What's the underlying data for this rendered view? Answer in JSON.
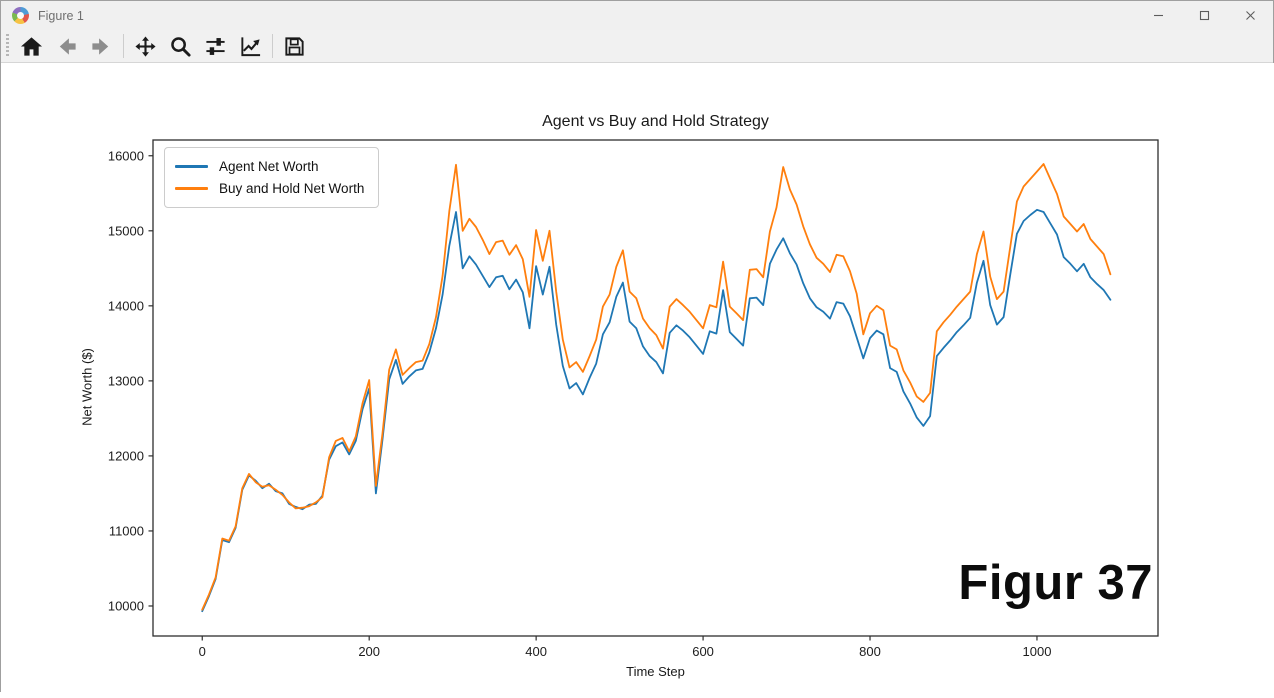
{
  "window": {
    "title": "Figure 1",
    "controls": {
      "minimize": "minimize",
      "maximize": "maximize",
      "close": "close"
    }
  },
  "toolbar": {
    "items": [
      {
        "name": "home",
        "enabled": true
      },
      {
        "name": "back",
        "enabled": false
      },
      {
        "name": "forward",
        "enabled": false
      },
      {
        "name": "pan",
        "enabled": true
      },
      {
        "name": "zoom-to-rect",
        "enabled": true
      },
      {
        "name": "configure-subplots",
        "enabled": true
      },
      {
        "name": "edit-axes",
        "enabled": true
      },
      {
        "name": "save",
        "enabled": true
      }
    ]
  },
  "annotation": {
    "label": "Figur 37"
  },
  "colors": {
    "agent_line": "#1f77b4",
    "buy_hold_line": "#ff7f0e",
    "spine": "#2e2e2e",
    "tick_text": "#1d1d1d"
  },
  "chart_data": {
    "type": "line",
    "title": "Agent vs Buy and Hold Strategy",
    "xlabel": "Time Step",
    "ylabel": "Net Worth ($)",
    "xlim": [
      -59,
      1145
    ],
    "ylim": [
      9600,
      16210
    ],
    "xticks": [
      0,
      200,
      400,
      600,
      800,
      1000
    ],
    "yticks": [
      10000,
      11000,
      12000,
      13000,
      14000,
      15000,
      16000
    ],
    "grid": false,
    "legend_position": "upper left",
    "x_start": 0,
    "x_step": 8,
    "series": [
      {
        "name": "Agent Net Worth",
        "color": "#1f77b4",
        "values": [
          9930,
          10130,
          10360,
          10880,
          10850,
          11040,
          11550,
          11740,
          11670,
          11570,
          11630,
          11530,
          11500,
          11360,
          11320,
          11290,
          11350,
          11360,
          11470,
          11950,
          12130,
          12180,
          12020,
          12200,
          12620,
          12900,
          11500,
          12220,
          13020,
          13280,
          12960,
          13060,
          13140,
          13160,
          13380,
          13700,
          14150,
          14800,
          15250,
          14500,
          14660,
          14550,
          14400,
          14250,
          14380,
          14400,
          14220,
          14350,
          14180,
          13700,
          14530,
          14150,
          14520,
          13750,
          13200,
          12900,
          12970,
          12820,
          13040,
          13230,
          13620,
          13780,
          14120,
          14310,
          13790,
          13700,
          13460,
          13330,
          13250,
          13100,
          13640,
          13740,
          13670,
          13580,
          13470,
          13360,
          13660,
          13630,
          14210,
          13650,
          13560,
          13470,
          14100,
          14110,
          14010,
          14560,
          14750,
          14900,
          14700,
          14550,
          14300,
          14100,
          13980,
          13920,
          13830,
          14050,
          14030,
          13860,
          13580,
          13300,
          13570,
          13670,
          13620,
          13170,
          13120,
          12860,
          12700,
          12510,
          12400,
          12530,
          13330,
          13440,
          13540,
          13650,
          13740,
          13840,
          14310,
          14600,
          14010,
          13750,
          13850,
          14420,
          14960,
          15130,
          15210,
          15280,
          15250,
          15100,
          14950,
          14650,
          14560,
          14460,
          14560,
          14380,
          14290,
          14210,
          14080
        ]
      },
      {
        "name": "Buy and Hold Net Worth",
        "color": "#ff7f0e",
        "values": [
          9950,
          10150,
          10380,
          10900,
          10870,
          11060,
          11570,
          11760,
          11650,
          11590,
          11610,
          11550,
          11480,
          11380,
          11300,
          11310,
          11330,
          11380,
          11450,
          11980,
          12200,
          12240,
          12060,
          12260,
          12700,
          13010,
          11600,
          12300,
          13150,
          13420,
          13080,
          13170,
          13250,
          13270,
          13490,
          13850,
          14400,
          15260,
          15880,
          15000,
          15160,
          15050,
          14880,
          14690,
          14850,
          14870,
          14680,
          14810,
          14620,
          14120,
          15010,
          14600,
          15000,
          14190,
          13550,
          13180,
          13250,
          13120,
          13330,
          13550,
          13990,
          14150,
          14520,
          14740,
          14190,
          14100,
          13830,
          13700,
          13610,
          13430,
          13990,
          14090,
          14010,
          13920,
          13810,
          13700,
          14010,
          13980,
          14590,
          13990,
          13900,
          13810,
          14480,
          14490,
          14380,
          14990,
          15310,
          15850,
          15550,
          15350,
          15060,
          14820,
          14640,
          14560,
          14450,
          14680,
          14660,
          14460,
          14160,
          13620,
          13900,
          14000,
          13940,
          13470,
          13420,
          13140,
          12980,
          12790,
          12720,
          12840,
          13660,
          13780,
          13880,
          13990,
          14090,
          14190,
          14690,
          14990,
          14390,
          14090,
          14190,
          14790,
          15390,
          15590,
          15690,
          15790,
          15890,
          15690,
          15490,
          15190,
          15090,
          14990,
          15090,
          14890,
          14790,
          14690,
          14420
        ]
      }
    ]
  }
}
